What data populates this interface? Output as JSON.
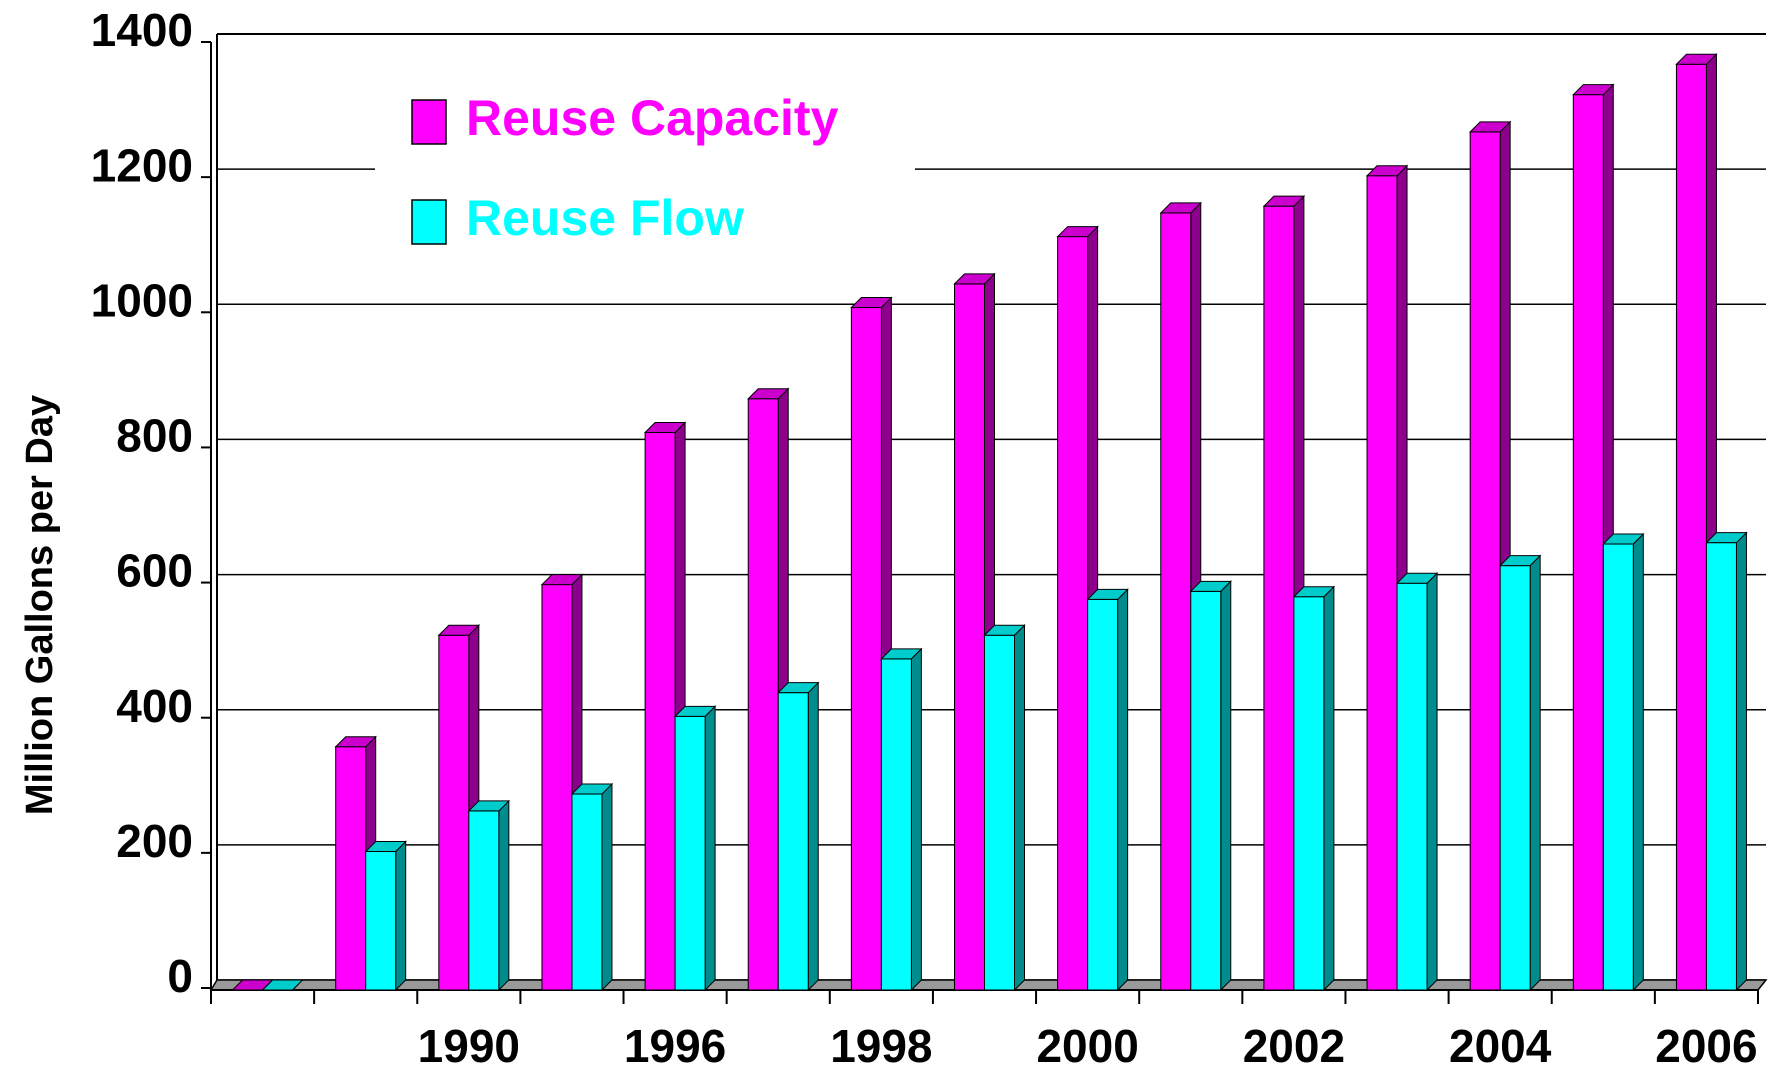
{
  "chart_data": {
    "type": "bar",
    "y_label": "Million Gallons per Day",
    "categories": [
      null,
      null,
      "1990",
      null,
      "1996",
      null,
      "1998",
      null,
      "2000",
      null,
      "2002",
      null,
      "2004",
      null,
      "2006"
    ],
    "series": [
      {
        "name": "Reuse Capacity",
        "color": "#ff00ff",
        "values": [
          0,
          360,
          525,
          600,
          825,
          875,
          1010,
          1045,
          1115,
          1150,
          1160,
          1205,
          1270,
          1325,
          1370
        ]
      },
      {
        "name": "Reuse Flow",
        "color": "#00ffff",
        "values": [
          0,
          205,
          265,
          290,
          405,
          440,
          490,
          525,
          578,
          590,
          582,
          602,
          628,
          660,
          662
        ]
      }
    ],
    "ylim": [
      0,
      1400
    ],
    "yticks": [
      0,
      200,
      400,
      600,
      800,
      1000,
      1200,
      1400
    ],
    "grid": true
  }
}
